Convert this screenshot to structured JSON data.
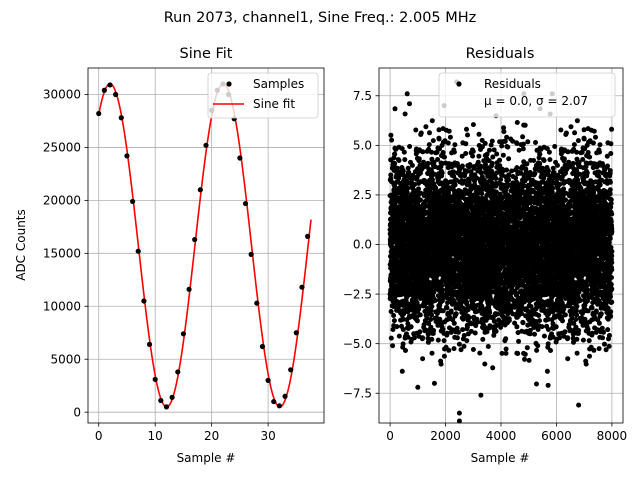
{
  "figure": {
    "suptitle": "Run 2073, channel1, Sine Freq.: 2.005 MHz"
  },
  "chart_data": [
    {
      "type": "line",
      "title": "Sine Fit",
      "xlabel": "Sample #",
      "ylabel": "ADC Counts",
      "xlim": [
        -1.9,
        39.9
      ],
      "ylim": [
        -1023,
        32500
      ],
      "xticks": [
        0,
        10,
        20,
        30
      ],
      "yticks": [
        0,
        5000,
        10000,
        15000,
        20000,
        25000,
        30000
      ],
      "grid": true,
      "legend": {
        "location": "upper right",
        "entries": [
          "Samples",
          "Sine fit"
        ]
      },
      "series": [
        {
          "name": "Samples",
          "kind": "scatter",
          "color": "#000000",
          "x": [
            0,
            1,
            2,
            3,
            4,
            5,
            6,
            7,
            8,
            9,
            10,
            11,
            12,
            13,
            14,
            15,
            16,
            17,
            18,
            19,
            20,
            21,
            22,
            23,
            24,
            25,
            26,
            27,
            28,
            29,
            30,
            31,
            32,
            33,
            34,
            35,
            36,
            37
          ],
          "y": [
            28200,
            30400,
            30900,
            30000,
            27800,
            24200,
            19900,
            15200,
            10500,
            6400,
            3100,
            1100,
            500,
            1400,
            3800,
            7400,
            11600,
            16300,
            21000,
            25200,
            28500,
            30400,
            31000,
            30000,
            27700,
            24000,
            19700,
            14900,
            10300,
            6200,
            3000,
            1000,
            600,
            1500,
            4000,
            7500,
            11800,
            16600
          ]
        },
        {
          "name": "Sine fit",
          "kind": "line",
          "color": "#ff0000",
          "amplitude": 15250,
          "offset": 15750,
          "period": 20.05,
          "phase_sample": 2.0,
          "x_range": [
            0,
            37.6
          ]
        }
      ]
    },
    {
      "type": "scatter",
      "title": "Residuals",
      "xlabel": "Sample #",
      "xlim": [
        -400,
        8400
      ],
      "ylim": [
        -9.0,
        8.9
      ],
      "xticks": [
        0,
        2000,
        4000,
        6000,
        8000
      ],
      "yticks": [
        -7.5,
        -5.0,
        -2.5,
        0.0,
        2.5,
        5.0,
        7.5
      ],
      "ytick_labels": [
        "−7.5",
        "−5.0",
        "−2.5",
        "0.0",
        "2.5",
        "5.0",
        "7.5"
      ],
      "grid": true,
      "legend": {
        "location": "upper right",
        "entries": [
          "Residuals",
          "μ = 0.0, σ = 2.07"
        ]
      },
      "series": [
        {
          "name": "Residuals",
          "kind": "scatter",
          "color": "#000000",
          "n_points": 8000,
          "mean": 0.0,
          "std": 2.07,
          "outliers": [
            [
              2400,
              8.2
            ],
            [
              2500,
              -8.5
            ],
            [
              2500,
              -8.9
            ],
            [
              6800,
              -8.1
            ],
            [
              1000,
              -7.2
            ],
            [
              1600,
              -7.0
            ],
            [
              5700,
              -7.1
            ],
            [
              700,
              7.1
            ],
            [
              1950,
              7.0
            ]
          ]
        }
      ]
    }
  ]
}
